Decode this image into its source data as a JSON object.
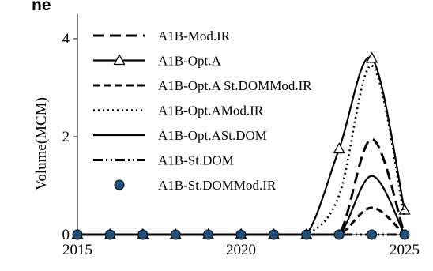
{
  "chart_data": {
    "type": "line",
    "title": "ne",
    "xlabel": "",
    "ylabel": "Volume(MCM)",
    "xlim": [
      2015,
      2025
    ],
    "ylim": [
      0,
      4.5
    ],
    "x_ticks": [
      "2015",
      "2020",
      "2025"
    ],
    "y_ticks": [
      "0",
      "2",
      "4"
    ],
    "grid": false,
    "legend_position": "top-left",
    "x": [
      2015,
      2016,
      2017,
      2018,
      2019,
      2020,
      2021,
      2022,
      2023,
      2024,
      2025
    ],
    "series": [
      {
        "name": "A1B-Mod.IR",
        "style": "long-dash",
        "marker": "none",
        "values": [
          0,
          0,
          0,
          0,
          0,
          0,
          0,
          0,
          0,
          1.95,
          0
        ]
      },
      {
        "name": "A1B-Opt.A",
        "style": "solid",
        "marker": "triangle",
        "values": [
          0,
          0,
          0,
          0,
          0,
          0,
          0,
          0,
          1.75,
          3.6,
          0.5
        ]
      },
      {
        "name": "A1B-Opt.A St.DOMMod.IR",
        "style": "dash",
        "marker": "none",
        "values": [
          0,
          0,
          0,
          0,
          0,
          0,
          0,
          0,
          0,
          0.55,
          0
        ]
      },
      {
        "name": "A1B-Opt.AMod.IR",
        "style": "dotted",
        "marker": "none",
        "values": [
          0,
          0,
          0,
          0,
          0,
          0,
          0,
          0,
          0.8,
          3.45,
          0.35
        ]
      },
      {
        "name": "A1B-Opt.ASt.DOM",
        "style": "solid",
        "marker": "none",
        "values": [
          0,
          0,
          0,
          0,
          0,
          0,
          0,
          0,
          0,
          1.2,
          0
        ]
      },
      {
        "name": "A1B-St.DOM",
        "style": "dash-dot-dot",
        "marker": "none",
        "values": [
          0,
          0,
          0,
          0,
          0,
          0,
          0,
          0,
          0,
          0,
          0
        ]
      },
      {
        "name": "A1B-St.DOMMod.IR",
        "style": "none",
        "marker": "circle",
        "values": [
          0,
          0,
          0,
          0,
          0,
          0,
          0,
          0,
          0,
          0,
          0
        ]
      }
    ],
    "colors": {
      "line": "#000000",
      "marker_fill": "#1f4e79",
      "marker_edge": "#000000"
    }
  }
}
